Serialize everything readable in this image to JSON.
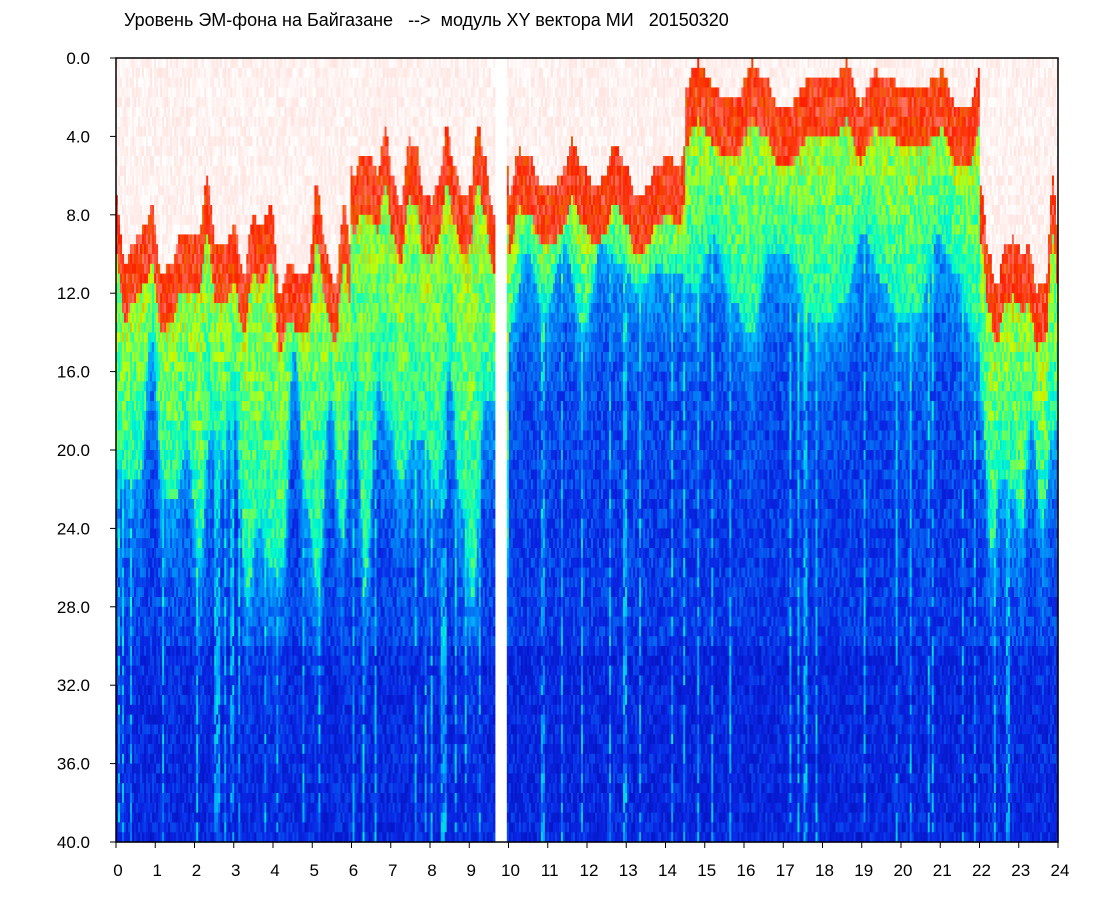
{
  "chart_data": {
    "type": "heatmap",
    "title": "Уровень ЭМ-фона на Байгазане   -->  модуль XY вектора МИ   20150320",
    "xlabel": "",
    "ylabel": "",
    "xlim": [
      0,
      24
    ],
    "ylim": [
      0,
      40
    ],
    "y_inverted": true,
    "grid": false,
    "x_ticks": [
      "0",
      "1",
      "2",
      "3",
      "4",
      "5",
      "6",
      "7",
      "8",
      "9",
      "10",
      "11",
      "12",
      "13",
      "14",
      "15",
      "16",
      "17",
      "18",
      "19",
      "20",
      "21",
      "22",
      "23",
      "24"
    ],
    "y_ticks": [
      "0.0",
      "4.0",
      "8.0",
      "12.0",
      "16.0",
      "20.0",
      "24.0",
      "28.0",
      "32.0",
      "36.0",
      "40.0"
    ],
    "colormap": [
      "#0000a0",
      "#0a28e6",
      "#00b4ff",
      "#00ffc8",
      "#c8ff00",
      "#ff1e00",
      "#ffffff"
    ],
    "gap_hours": [
      9.68,
      9.72,
      9.76,
      9.8,
      9.84,
      9.88,
      9.92
    ]
  }
}
